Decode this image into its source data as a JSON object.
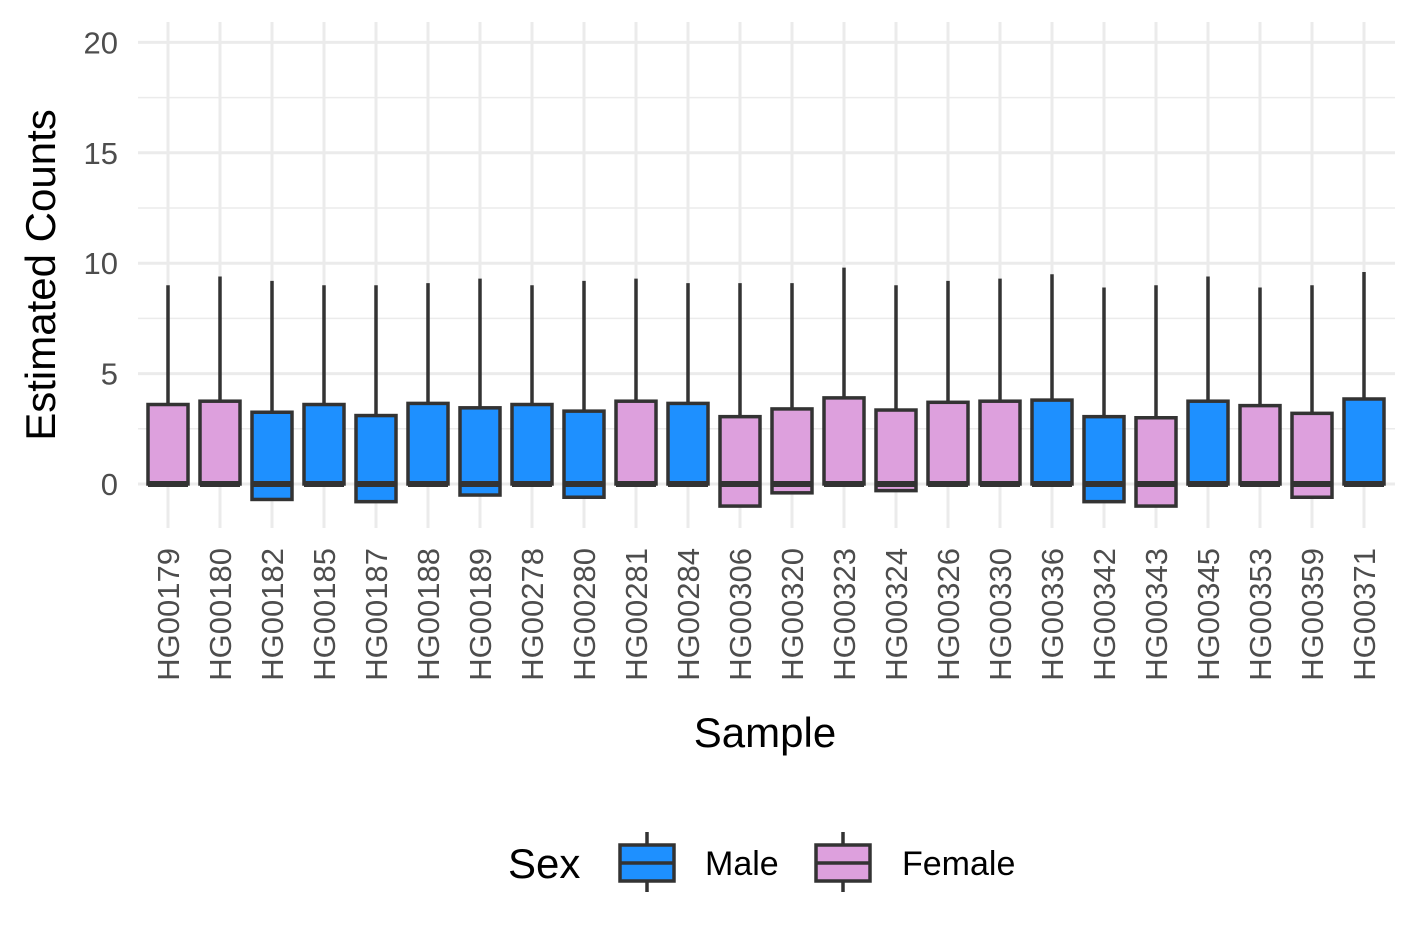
{
  "chart_data": {
    "type": "boxplot",
    "title": "",
    "xlabel": "Sample",
    "ylabel": "Estimated Counts",
    "ylim": [
      -2,
      21
    ],
    "yticks": [
      0,
      5,
      10,
      15,
      20
    ],
    "grid": true,
    "legend": {
      "title": "Sex",
      "placement": "bottom",
      "entries": [
        {
          "name": "Male",
          "color": "#1e90ff"
        },
        {
          "name": "Female",
          "color": "#dda0dd"
        }
      ]
    },
    "categories": [
      "HG00179",
      "HG00180",
      "HG00182",
      "HG00185",
      "HG00187",
      "HG00188",
      "HG00189",
      "HG00278",
      "HG00280",
      "HG00281",
      "HG00284",
      "HG00306",
      "HG00320",
      "HG00323",
      "HG00324",
      "HG00326",
      "HG00330",
      "HG00336",
      "HG00342",
      "HG00343",
      "HG00345",
      "HG00353",
      "HG00359",
      "HG00371"
    ],
    "boxes": [
      {
        "sample": "HG00179",
        "sex": "Female",
        "min": 0.0,
        "q1": 0.0,
        "median": 0.0,
        "q3": 3.6,
        "max": 9.0
      },
      {
        "sample": "HG00180",
        "sex": "Female",
        "min": 0.0,
        "q1": 0.0,
        "median": 0.0,
        "q3": 3.75,
        "max": 9.4
      },
      {
        "sample": "HG00182",
        "sex": "Male",
        "min": -0.7,
        "q1": -0.7,
        "median": 0.0,
        "q3": 3.25,
        "max": 9.2
      },
      {
        "sample": "HG00185",
        "sex": "Male",
        "min": 0.0,
        "q1": 0.0,
        "median": 0.0,
        "q3": 3.6,
        "max": 9.0
      },
      {
        "sample": "HG00187",
        "sex": "Male",
        "min": -0.8,
        "q1": -0.8,
        "median": 0.0,
        "q3": 3.1,
        "max": 9.0
      },
      {
        "sample": "HG00188",
        "sex": "Male",
        "min": 0.0,
        "q1": 0.0,
        "median": 0.0,
        "q3": 3.65,
        "max": 9.1
      },
      {
        "sample": "HG00189",
        "sex": "Male",
        "min": -0.5,
        "q1": -0.5,
        "median": 0.0,
        "q3": 3.45,
        "max": 9.3
      },
      {
        "sample": "HG00278",
        "sex": "Male",
        "min": 0.0,
        "q1": 0.0,
        "median": 0.0,
        "q3": 3.6,
        "max": 9.0
      },
      {
        "sample": "HG00280",
        "sex": "Male",
        "min": -0.6,
        "q1": -0.6,
        "median": 0.0,
        "q3": 3.3,
        "max": 9.2
      },
      {
        "sample": "HG00281",
        "sex": "Female",
        "min": 0.0,
        "q1": 0.0,
        "median": 0.0,
        "q3": 3.75,
        "max": 9.3
      },
      {
        "sample": "HG00284",
        "sex": "Male",
        "min": 0.0,
        "q1": 0.0,
        "median": 0.0,
        "q3": 3.65,
        "max": 9.1
      },
      {
        "sample": "HG00306",
        "sex": "Female",
        "min": -1.0,
        "q1": -1.0,
        "median": 0.0,
        "q3": 3.05,
        "max": 9.1
      },
      {
        "sample": "HG00320",
        "sex": "Female",
        "min": -0.4,
        "q1": -0.4,
        "median": 0.0,
        "q3": 3.4,
        "max": 9.1
      },
      {
        "sample": "HG00323",
        "sex": "Female",
        "min": 0.0,
        "q1": 0.0,
        "median": 0.0,
        "q3": 3.9,
        "max": 9.8
      },
      {
        "sample": "HG00324",
        "sex": "Female",
        "min": -0.3,
        "q1": -0.3,
        "median": 0.0,
        "q3": 3.35,
        "max": 9.0
      },
      {
        "sample": "HG00326",
        "sex": "Female",
        "min": 0.0,
        "q1": 0.0,
        "median": 0.0,
        "q3": 3.7,
        "max": 9.2
      },
      {
        "sample": "HG00330",
        "sex": "Female",
        "min": 0.0,
        "q1": 0.0,
        "median": 0.0,
        "q3": 3.75,
        "max": 9.3
      },
      {
        "sample": "HG00336",
        "sex": "Male",
        "min": 0.0,
        "q1": 0.0,
        "median": 0.0,
        "q3": 3.8,
        "max": 9.5
      },
      {
        "sample": "HG00342",
        "sex": "Male",
        "min": -0.8,
        "q1": -0.8,
        "median": 0.0,
        "q3": 3.05,
        "max": 8.9
      },
      {
        "sample": "HG00343",
        "sex": "Female",
        "min": -1.0,
        "q1": -1.0,
        "median": 0.0,
        "q3": 3.0,
        "max": 9.0
      },
      {
        "sample": "HG00345",
        "sex": "Male",
        "min": 0.0,
        "q1": 0.0,
        "median": 0.0,
        "q3": 3.75,
        "max": 9.4
      },
      {
        "sample": "HG00353",
        "sex": "Female",
        "min": 0.0,
        "q1": 0.0,
        "median": 0.0,
        "q3": 3.55,
        "max": 8.9
      },
      {
        "sample": "HG00359",
        "sex": "Female",
        "min": -0.6,
        "q1": -0.6,
        "median": 0.0,
        "q3": 3.2,
        "max": 9.0
      },
      {
        "sample": "HG00371",
        "sex": "Male",
        "min": 0.0,
        "q1": 0.0,
        "median": 0.0,
        "q3": 3.85,
        "max": 9.6
      }
    ]
  }
}
